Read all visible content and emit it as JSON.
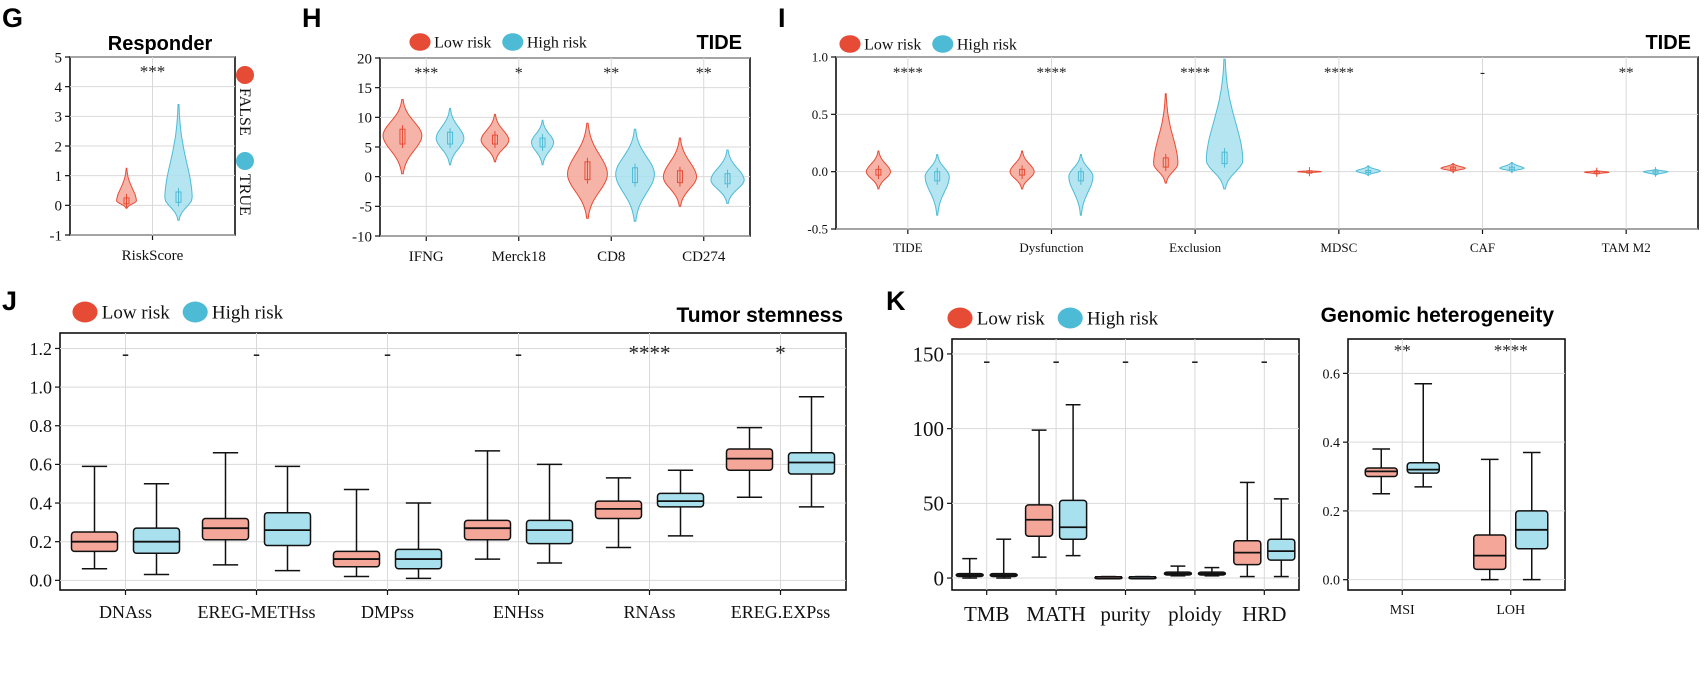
{
  "colors": {
    "low": "#e64b35",
    "high": "#4dbbd5",
    "low_fill": "#f4a799",
    "high_fill": "#a8e0ee"
  },
  "legend": {
    "low": "Low risk",
    "high": "High risk"
  },
  "chart_data": [
    {
      "panel": "G",
      "type": "violin",
      "title": "Responder",
      "categories": [
        "RiskScore"
      ],
      "ylim": [
        -1,
        5
      ],
      "yticks": [
        -1,
        0,
        1,
        2,
        3,
        4,
        5
      ],
      "series": [
        {
          "name": "FALSE",
          "color_key": "low",
          "violins": [
            {
              "min": -0.1,
              "max": 1.25,
              "q1": 0.05,
              "median": 0.15,
              "q3": 0.25,
              "center": 0.15,
              "width": 0.3
            }
          ]
        },
        {
          "name": "TRUE",
          "color_key": "high",
          "violins": [
            {
              "min": -0.5,
              "max": 3.4,
              "q1": 0.1,
              "median": 0.25,
              "q3": 0.45,
              "center": 0.25,
              "width": 0.55
            }
          ]
        }
      ],
      "significance": [
        "***"
      ],
      "legend_labels": [
        "FALSE",
        "TRUE"
      ]
    },
    {
      "panel": "H",
      "type": "violin",
      "title": "TIDE",
      "categories": [
        "IFNG",
        "Merck18",
        "CD8",
        "CD274"
      ],
      "ylim": [
        -10,
        20
      ],
      "yticks": [
        -10,
        -5,
        0,
        5,
        10,
        15,
        20
      ],
      "series": [
        {
          "name": "Low risk",
          "color_key": "low",
          "violins": [
            {
              "min": 0.5,
              "max": 13,
              "q1": 5.5,
              "median": 6.8,
              "q3": 8,
              "center": 7,
              "width": 3.5
            },
            {
              "min": 2.5,
              "max": 10.5,
              "q1": 5.5,
              "median": 6.2,
              "q3": 7,
              "center": 6.2,
              "width": 2.5
            },
            {
              "min": -7,
              "max": 9,
              "q1": -0.5,
              "median": 1,
              "q3": 2.5,
              "center": 0.5,
              "width": 4
            },
            {
              "min": -5,
              "max": 6.5,
              "q1": -1,
              "median": 0,
              "q3": 1,
              "center": 0,
              "width": 3
            }
          ]
        },
        {
          "name": "High risk",
          "color_key": "high",
          "violins": [
            {
              "min": 2,
              "max": 11.5,
              "q1": 5.5,
              "median": 6.5,
              "q3": 7.5,
              "center": 6.5,
              "width": 2.5
            },
            {
              "min": 2,
              "max": 9.5,
              "q1": 5,
              "median": 5.8,
              "q3": 6.5,
              "center": 5.8,
              "width": 2
            },
            {
              "min": -7.5,
              "max": 8,
              "q1": -1,
              "median": 0.5,
              "q3": 1.5,
              "center": 0.5,
              "width": 3.5
            },
            {
              "min": -4.5,
              "max": 4.5,
              "q1": -1.2,
              "median": -0.5,
              "q3": 0.5,
              "center": -0.5,
              "width": 3
            }
          ]
        }
      ],
      "significance": [
        "***",
        "*",
        "**",
        "**"
      ]
    },
    {
      "panel": "I",
      "type": "violin",
      "title": "TIDE",
      "categories": [
        "TIDE",
        "Dysfunction",
        "Exclusion",
        "MDSC",
        "CAF",
        "TAM M2"
      ],
      "ylim": [
        -0.5,
        1.0
      ],
      "yticks": [
        -0.5,
        0.0,
        0.5,
        1.0
      ],
      "series": [
        {
          "name": "Low risk",
          "color_key": "low",
          "violins": [
            {
              "min": -0.15,
              "max": 0.18,
              "q1": -0.03,
              "median": -0.01,
              "q3": 0.02,
              "center": 0,
              "width": 0.06
            },
            {
              "min": -0.15,
              "max": 0.18,
              "q1": -0.03,
              "median": 0,
              "q3": 0.02,
              "center": 0,
              "width": 0.06
            },
            {
              "min": -0.1,
              "max": 0.68,
              "q1": 0.04,
              "median": 0.07,
              "q3": 0.12,
              "center": 0.07,
              "width": 0.1
            },
            {
              "min": -0.01,
              "max": 0.01,
              "q1": -0.005,
              "median": 0,
              "q3": 0.005,
              "center": 0,
              "width": 0.015
            },
            {
              "min": 0.0,
              "max": 0.07,
              "q1": 0.02,
              "median": 0.03,
              "q3": 0.04,
              "center": 0.03,
              "width": 0.04
            },
            {
              "min": -0.02,
              "max": 0.01,
              "q1": -0.01,
              "median": -0.005,
              "q3": 0.0,
              "center": -0.005,
              "width": 0.02
            }
          ]
        },
        {
          "name": "High risk",
          "color_key": "high",
          "violins": [
            {
              "min": -0.38,
              "max": 0.15,
              "q1": -0.08,
              "median": -0.04,
              "q3": 0,
              "center": -0.04,
              "width": 0.08
            },
            {
              "min": -0.38,
              "max": 0.15,
              "q1": -0.08,
              "median": -0.04,
              "q3": 0,
              "center": -0.04,
              "width": 0.08
            },
            {
              "min": -0.15,
              "max": 0.98,
              "q1": 0.07,
              "median": 0.12,
              "q3": 0.17,
              "center": 0.1,
              "width": 0.15
            },
            {
              "min": -0.03,
              "max": 0.05,
              "q1": -0.005,
              "median": 0,
              "q3": 0.01,
              "center": 0.005,
              "width": 0.03
            },
            {
              "min": 0.0,
              "max": 0.08,
              "q1": 0.02,
              "median": 0.03,
              "q3": 0.04,
              "center": 0.03,
              "width": 0.04
            },
            {
              "min": -0.03,
              "max": 0.02,
              "q1": -0.01,
              "median": 0,
              "q3": 0.005,
              "center": 0,
              "width": 0.02
            }
          ]
        }
      ],
      "significance": [
        "****",
        "****",
        "****",
        "****",
        "-",
        "**"
      ]
    },
    {
      "panel": "J",
      "type": "box",
      "title": "Tumor stemness",
      "categories": [
        "DNAss",
        "EREG-METHss",
        "DMPss",
        "ENHss",
        "RNAss",
        "EREG.EXPss"
      ],
      "ylim": [
        -0.05,
        1.28
      ],
      "yticks": [
        0.0,
        0.2,
        0.4,
        0.6,
        0.8,
        1.0,
        1.2
      ],
      "series": [
        {
          "name": "Low risk",
          "color_key": "low",
          "boxes": [
            {
              "min": 0.06,
              "q1": 0.15,
              "median": 0.2,
              "q3": 0.25,
              "max": 0.59
            },
            {
              "min": 0.08,
              "q1": 0.21,
              "median": 0.27,
              "q3": 0.32,
              "max": 0.66
            },
            {
              "min": 0.02,
              "q1": 0.07,
              "median": 0.11,
              "q3": 0.15,
              "max": 0.47
            },
            {
              "min": 0.11,
              "q1": 0.21,
              "median": 0.27,
              "q3": 0.31,
              "max": 0.67
            },
            {
              "min": 0.17,
              "q1": 0.32,
              "median": 0.37,
              "q3": 0.41,
              "max": 0.53
            },
            {
              "min": 0.43,
              "q1": 0.57,
              "median": 0.63,
              "q3": 0.68,
              "max": 0.79
            }
          ]
        },
        {
          "name": "High risk",
          "color_key": "high",
          "boxes": [
            {
              "min": 0.03,
              "q1": 0.14,
              "median": 0.2,
              "q3": 0.27,
              "max": 0.5
            },
            {
              "min": 0.05,
              "q1": 0.18,
              "median": 0.26,
              "q3": 0.35,
              "max": 0.59
            },
            {
              "min": 0.01,
              "q1": 0.06,
              "median": 0.11,
              "q3": 0.16,
              "max": 0.4
            },
            {
              "min": 0.09,
              "q1": 0.19,
              "median": 0.26,
              "q3": 0.31,
              "max": 0.6
            },
            {
              "min": 0.23,
              "q1": 0.38,
              "median": 0.41,
              "q3": 0.45,
              "max": 0.57
            },
            {
              "min": 0.38,
              "q1": 0.55,
              "median": 0.61,
              "q3": 0.66,
              "max": 0.95
            }
          ]
        }
      ],
      "significance": [
        "-",
        "-",
        "-",
        "-",
        "****",
        "*"
      ]
    },
    {
      "panel": "K",
      "type": "box",
      "title": "Genomic heterogeneity",
      "categories": [
        "TMB",
        "MATH",
        "purity",
        "ploidy",
        "HRD"
      ],
      "ylim": [
        -8,
        160
      ],
      "yticks": [
        0,
        50,
        100,
        150
      ],
      "series": [
        {
          "name": "Low risk",
          "color_key": "low",
          "boxes": [
            {
              "min": 0,
              "q1": 1,
              "median": 2,
              "q3": 3,
              "max": 13
            },
            {
              "min": 14,
              "q1": 28,
              "median": 39,
              "q3": 49,
              "max": 99
            },
            {
              "min": 0.5,
              "q1": 0.7,
              "median": 0.8,
              "q3": 0.9,
              "max": 1
            },
            {
              "min": 1.5,
              "q1": 2,
              "median": 3,
              "q3": 4,
              "max": 8
            },
            {
              "min": 1,
              "q1": 9,
              "median": 17,
              "q3": 25,
              "max": 64
            }
          ]
        },
        {
          "name": "High risk",
          "color_key": "high",
          "boxes": [
            {
              "min": 0,
              "q1": 1,
              "median": 2,
              "q3": 3,
              "max": 26
            },
            {
              "min": 15,
              "q1": 26,
              "median": 34,
              "q3": 52,
              "max": 116
            },
            {
              "min": 0.5,
              "q1": 0.7,
              "median": 0.8,
              "q3": 0.9,
              "max": 1
            },
            {
              "min": 1.5,
              "q1": 2,
              "median": 3,
              "q3": 4,
              "max": 7
            },
            {
              "min": 1,
              "q1": 12,
              "median": 18,
              "q3": 26,
              "max": 53
            }
          ]
        }
      ],
      "significance": [
        "-",
        "-",
        "-",
        "-",
        "-"
      ]
    },
    {
      "panel": "K2",
      "type": "box",
      "title": "",
      "categories": [
        "MSI",
        "LOH"
      ],
      "ylim": [
        -0.03,
        0.7
      ],
      "yticks": [
        0.0,
        0.2,
        0.4,
        0.6
      ],
      "series": [
        {
          "name": "Low risk",
          "color_key": "low",
          "boxes": [
            {
              "min": 0.25,
              "q1": 0.3,
              "median": 0.315,
              "q3": 0.325,
              "max": 0.38
            },
            {
              "min": 0.0,
              "q1": 0.03,
              "median": 0.07,
              "q3": 0.13,
              "max": 0.35
            }
          ]
        },
        {
          "name": "High risk",
          "color_key": "high",
          "boxes": [
            {
              "min": 0.27,
              "q1": 0.31,
              "median": 0.32,
              "q3": 0.34,
              "max": 0.57
            },
            {
              "min": 0.0,
              "q1": 0.09,
              "median": 0.145,
              "q3": 0.2,
              "max": 0.37
            }
          ]
        }
      ],
      "significance": [
        "**",
        "****"
      ]
    }
  ]
}
